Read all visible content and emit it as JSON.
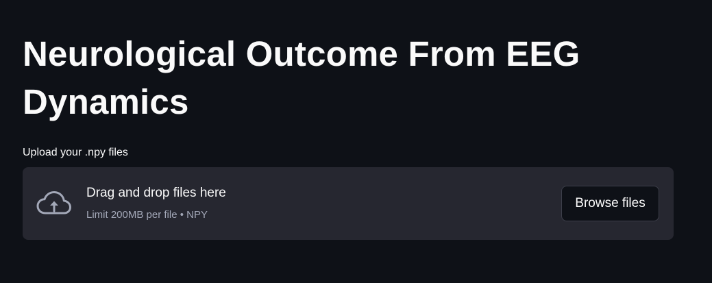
{
  "page": {
    "title": "Neurological Outcome From EEG Dynamics"
  },
  "uploader": {
    "label": "Upload your .npy files",
    "drop_text": "Drag and drop files here",
    "limit_text": "Limit 200MB per file • NPY",
    "browse_label": "Browse files",
    "icon": "cloud-upload-icon"
  },
  "colors": {
    "background": "#0e1117",
    "dropzone": "#262730",
    "text": "#fafafa",
    "muted_text": "#a3a8b8"
  }
}
